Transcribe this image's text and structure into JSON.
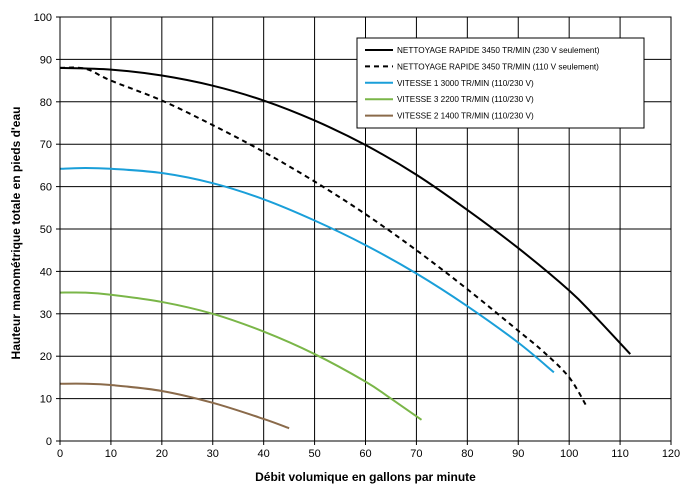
{
  "chart_data": {
    "type": "line",
    "xlabel": "Débit volumique en gallons par minute",
    "ylabel": "Hauteur manométrique totale en pieds d'eau",
    "xlim": [
      0,
      120
    ],
    "ylim": [
      0,
      100
    ],
    "x_ticks": [
      "0",
      "10",
      "20",
      "30",
      "40",
      "50",
      "60",
      "70",
      "80",
      "90",
      "100",
      "110",
      "120"
    ],
    "y_ticks": [
      "0",
      "10",
      "20",
      "30",
      "40",
      "50",
      "60",
      "70",
      "80",
      "90",
      "100"
    ],
    "grid": true,
    "legend_position": "top-right",
    "series": [
      {
        "name": "NETTOYAGE RAPIDE 3450 TR/MIN (230 V seulement)",
        "color": "#000000",
        "style": "solid",
        "x": [
          0,
          10,
          20,
          30,
          40,
          50,
          60,
          70,
          80,
          90,
          100,
          105,
          112
        ],
        "y": [
          88,
          87.6,
          86.2,
          83.8,
          80.3,
          75.6,
          69.8,
          62.8,
          54.5,
          45.5,
          35.5,
          29.5,
          20.5
        ]
      },
      {
        "name": "NETTOYAGE RAPIDE 3450 TR/MIN (110 V seulement)",
        "color": "#000000",
        "style": "dashed",
        "x": [
          0,
          5,
          10,
          20,
          30,
          40,
          50,
          60,
          70,
          80,
          90,
          95,
          100,
          103.5
        ],
        "y": [
          88,
          87.8,
          85,
          80.3,
          74.5,
          68.2,
          61.2,
          53.5,
          45,
          35.8,
          26,
          21,
          15,
          8
        ]
      },
      {
        "name": "VITESSE 1 3000 TR/MIN (110/230 V)",
        "color": "#1a9fd9",
        "style": "solid",
        "x": [
          0,
          5,
          10,
          20,
          30,
          40,
          50,
          60,
          70,
          80,
          90,
          97
        ],
        "y": [
          64.2,
          64.4,
          64.2,
          63.2,
          60.8,
          57,
          52,
          46.2,
          39.5,
          31.8,
          23.2,
          16.2
        ]
      },
      {
        "name": "VITESSE 3 2200 TR/MIN (110/230 V)",
        "color": "#7ab648",
        "style": "solid",
        "x": [
          0,
          5,
          10,
          20,
          30,
          40,
          50,
          60,
          65,
          71
        ],
        "y": [
          35,
          35,
          34.5,
          32.8,
          30,
          25.8,
          20.5,
          14,
          10,
          5
        ]
      },
      {
        "name": "VITESSE 2 1400 TR/MIN (110/230 V)",
        "color": "#8a6a4a",
        "style": "solid",
        "x": [
          0,
          5,
          10,
          20,
          30,
          40,
          45
        ],
        "y": [
          13.5,
          13.5,
          13.2,
          11.8,
          9,
          5.2,
          3
        ]
      }
    ]
  }
}
